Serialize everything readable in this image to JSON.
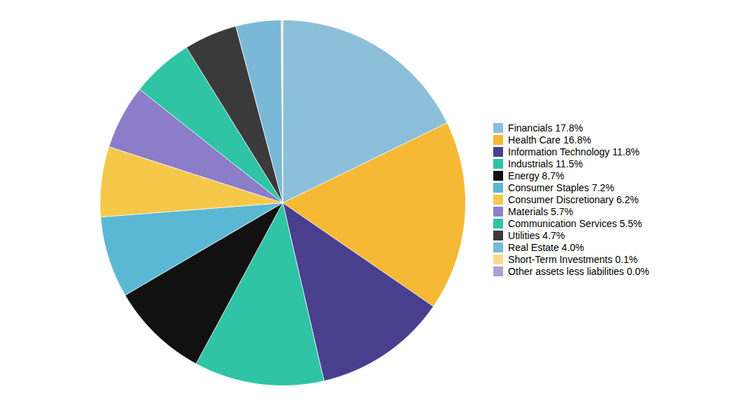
{
  "chart_data": {
    "type": "pie",
    "categories": [
      "Financials 17.8%",
      "Health Care 16.8%",
      "Information Technology 11.8%",
      "Industrials 11.5%",
      "Energy 8.7%",
      "Consumer Staples 7.2%",
      "Consumer Discretionary 6.2%",
      "Materials 5.7%",
      "Communication Services 5.5%",
      "Utilities 4.7%",
      "Real Estate 4.0%",
      "Short-Term Investments 0.1%",
      "Other assets less liabilities 0.0%"
    ],
    "values": [
      17.8,
      16.8,
      11.8,
      11.5,
      8.7,
      7.2,
      6.2,
      5.7,
      5.5,
      4.7,
      4.0,
      0.1,
      0.05
    ],
    "colors": [
      "#8BBFDA",
      "#F5B935",
      "#4A3F8F",
      "#2EC4A5",
      "#111111",
      "#5BB8D4",
      "#F5C84A",
      "#8B7DC8",
      "#2EC4A5",
      "#3A3A3A",
      "#7AB8D8",
      "#F5DC8A",
      "#B0A0D0"
    ],
    "legend": "right"
  }
}
